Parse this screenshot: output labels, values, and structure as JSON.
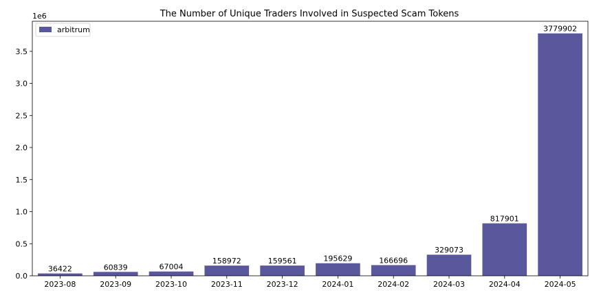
{
  "chart_data": {
    "type": "bar",
    "title": "The Number of Unique Traders Involved in Suspected Scam Tokens",
    "xlabel": "",
    "ylabel": "",
    "y_multiplier_label": "1e6",
    "categories": [
      "2023-08",
      "2023-09",
      "2023-10",
      "2023-11",
      "2023-12",
      "2024-01",
      "2024-02",
      "2024-03",
      "2024-04",
      "2024-05"
    ],
    "series": [
      {
        "name": "arbitrum",
        "values": [
          36422,
          60839,
          67004,
          158972,
          159561,
          195629,
          166696,
          329073,
          817901,
          3779902
        ],
        "data_labels": [
          "36422",
          "60839",
          "67004",
          "158972",
          "159561",
          "195629",
          "166696",
          "329073",
          "817901",
          "3779902"
        ]
      }
    ],
    "ylim": [
      0,
      3968897
    ],
    "yticks": [
      0,
      500000,
      1000000,
      1500000,
      2000000,
      2500000,
      3000000,
      3500000
    ],
    "ytick_labels": [
      "0.0",
      "0.5",
      "1.0",
      "1.5",
      "2.0",
      "2.5",
      "3.0",
      "3.5"
    ],
    "grid": false,
    "legend_position": "top-left",
    "bar_color": "#5a589c"
  }
}
